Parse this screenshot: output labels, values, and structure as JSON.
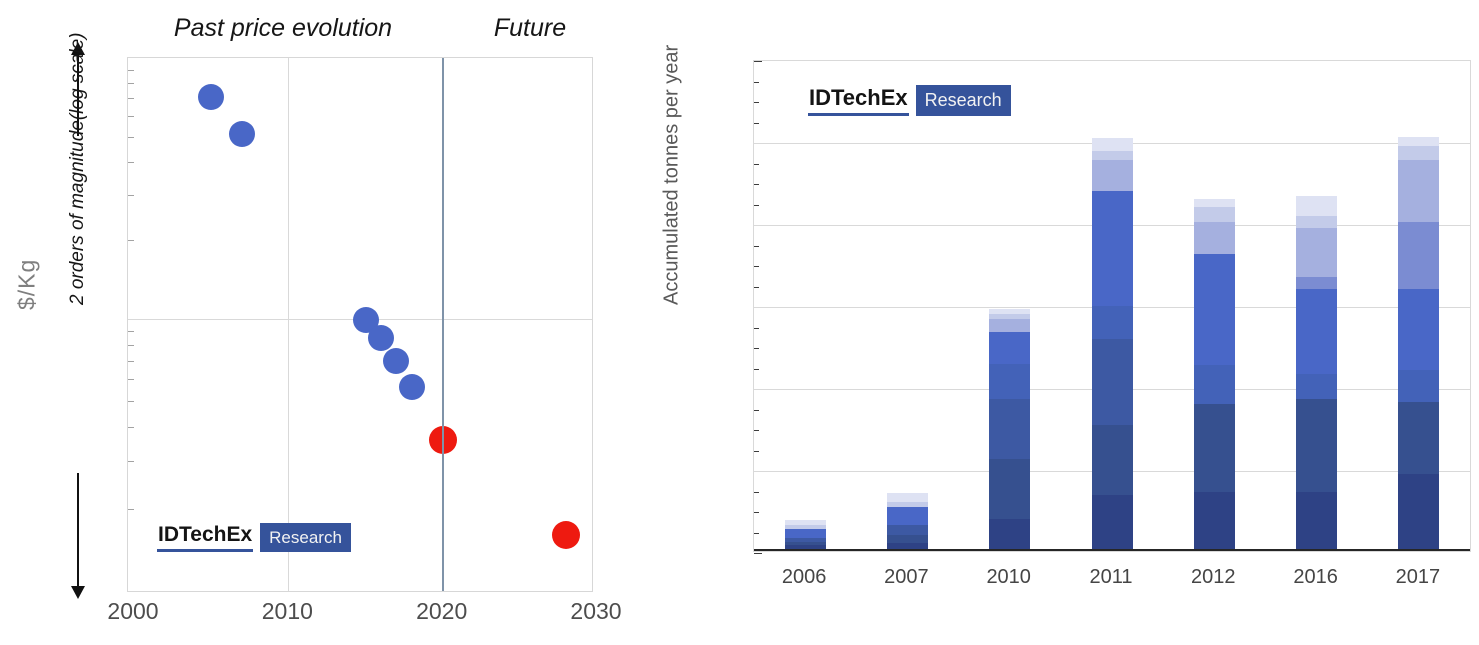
{
  "logo": {
    "brand": "IDTechEx",
    "sub": "Research",
    "navy": "#35539b"
  },
  "left_chart": {
    "title_past": "Past price evolution",
    "title_future": "Future",
    "y_axis_label": "$/Kg",
    "y_axis_annotation": "2 orders of magnitude(log scale)",
    "x_tick_labels": [
      "2000",
      "2010",
      "2020",
      "2030"
    ]
  },
  "right_chart": {
    "y_axis_label": "Accumulated tonnes per year",
    "x_tick_labels": [
      "2006",
      "2007",
      "2010",
      "2011",
      "2012",
      "2016",
      "2017"
    ]
  },
  "chart_data": [
    {
      "type": "scatter",
      "title": "Past price evolution | Future",
      "xlabel": "",
      "ylabel": "$/Kg",
      "y_axis_note": "2 orders of magnitude(log scale), no numeric tick labels",
      "x_range": [
        2000,
        2030
      ],
      "x_ticks": [
        2000,
        2010,
        2020,
        2030
      ],
      "y_log_range": [
        1,
        100
      ],
      "divider_year": 2020,
      "gridlines": {
        "vertical_at": [
          2010
        ],
        "horizontal_at_value": 10
      },
      "series": [
        {
          "name": "past-price-points",
          "color": "#4967c7",
          "marker_radius": 13,
          "points": [
            {
              "year": 2005,
              "value": 71
            },
            {
              "year": 2007,
              "value": 51
            },
            {
              "year": 2015,
              "value": 9.9
            },
            {
              "year": 2016,
              "value": 8.5
            },
            {
              "year": 2017,
              "value": 7.0
            },
            {
              "year": 2018,
              "value": 5.6
            }
          ]
        },
        {
          "name": "future-price-points",
          "color": "#ee1a10",
          "marker_radius": 14,
          "points": [
            {
              "year": 2020,
              "value": 3.6
            },
            {
              "year": 2028,
              "value": 1.6
            }
          ]
        }
      ]
    },
    {
      "type": "bar",
      "stacked": true,
      "title": "",
      "xlabel": "",
      "ylabel": "Accumulated tonnes per year",
      "y_axis_note": "unlabeled axis; values in relative units, 1.0 = one gridline interval",
      "categories": [
        "2006",
        "2007",
        "2010",
        "2011",
        "2012",
        "2016",
        "2017"
      ],
      "palette": {
        "c1": "#2e4285",
        "c2": "#36508f",
        "c3": "#3d59a3",
        "c4": "#4362b8",
        "c5": "#4967c7",
        "c6": "#7b8cd2",
        "c7": "#a5b0df",
        "c8": "#c3cbe9",
        "c9": "#dee2f3"
      },
      "totals": [
        0.35,
        0.7,
        2.93,
        5.02,
        4.27,
        4.3,
        5.03
      ],
      "bars": [
        {
          "category": "2006",
          "segments": [
            [
              "c1",
              0.05
            ],
            [
              "c2",
              0.04
            ],
            [
              "c3",
              0.05
            ],
            [
              "c5",
              0.1
            ],
            [
              "c8",
              0.05
            ],
            [
              "c9",
              0.07
            ]
          ]
        },
        {
          "category": "2007",
          "segments": [
            [
              "c1",
              0.07
            ],
            [
              "c2",
              0.1
            ],
            [
              "c3",
              0.12
            ],
            [
              "c5",
              0.22
            ],
            [
              "c8",
              0.06
            ],
            [
              "c9",
              0.12
            ]
          ]
        },
        {
          "category": "2010",
          "segments": [
            [
              "c1",
              0.37
            ],
            [
              "c2",
              0.73
            ],
            [
              "c3",
              0.73
            ],
            [
              "c4",
              0.43
            ],
            [
              "c5",
              0.39
            ],
            [
              "c7",
              0.15
            ],
            [
              "c8",
              0.07
            ],
            [
              "c9",
              0.06
            ]
          ]
        },
        {
          "category": "2011",
          "segments": [
            [
              "c1",
              0.66
            ],
            [
              "c2",
              0.85
            ],
            [
              "c3",
              1.05
            ],
            [
              "c4",
              0.41
            ],
            [
              "c5",
              1.4
            ],
            [
              "c7",
              0.37
            ],
            [
              "c8",
              0.12
            ],
            [
              "c9",
              0.16
            ]
          ]
        },
        {
          "category": "2012",
          "segments": [
            [
              "c1",
              0.7
            ],
            [
              "c2",
              1.07
            ],
            [
              "c4",
              0.48
            ],
            [
              "c5",
              1.35
            ],
            [
              "c7",
              0.39
            ],
            [
              "c8",
              0.18
            ],
            [
              "c9",
              0.1
            ]
          ]
        },
        {
          "category": "2016",
          "segments": [
            [
              "c1",
              0.7
            ],
            [
              "c2",
              1.13
            ],
            [
              "c4",
              0.3
            ],
            [
              "c5",
              1.04
            ],
            [
              "c6",
              0.15
            ],
            [
              "c7",
              0.59
            ],
            [
              "c8",
              0.15
            ],
            [
              "c9",
              0.24
            ]
          ]
        },
        {
          "category": "2017",
          "segments": [
            [
              "c1",
              0.91
            ],
            [
              "c2",
              0.88
            ],
            [
              "c4",
              0.39
            ],
            [
              "c5",
              0.99
            ],
            [
              "c6",
              0.82
            ],
            [
              "c7",
              0.76
            ],
            [
              "c8",
              0.16
            ],
            [
              "c9",
              0.12
            ]
          ]
        }
      ],
      "legend": "none",
      "grid": "horizontal gridlines every 1.0 unit"
    }
  ]
}
